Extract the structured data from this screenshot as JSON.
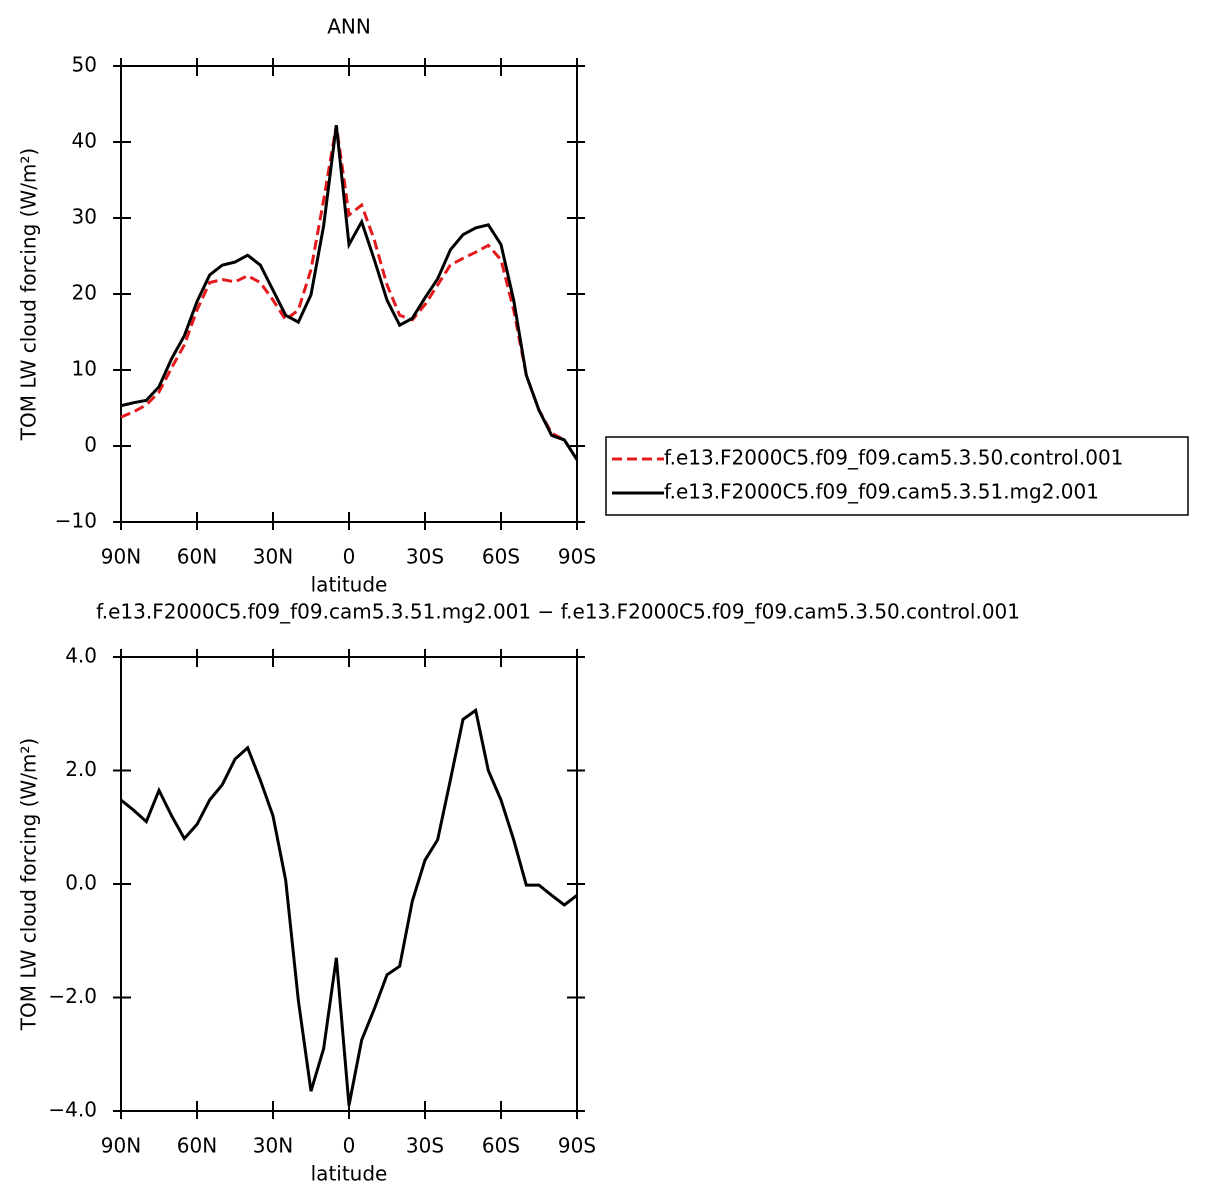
{
  "chart_data": [
    {
      "type": "line",
      "title": "ANN",
      "xlabel": "latitude",
      "ylabel": "TOM LW cloud forcing (W/m²)",
      "x": [
        90,
        85,
        80,
        75,
        70,
        65,
        60,
        55,
        50,
        45,
        40,
        35,
        30,
        25,
        20,
        15,
        10,
        5,
        0,
        -5,
        -10,
        -15,
        -20,
        -25,
        -30,
        -35,
        -40,
        -45,
        -50,
        -55,
        -60,
        -65,
        -70,
        -75,
        -80,
        -85,
        -90
      ],
      "xlim": [
        90,
        -90
      ],
      "xticks": [
        {
          "value": 90,
          "label": "90N"
        },
        {
          "value": 60,
          "label": "60N"
        },
        {
          "value": 30,
          "label": "30N"
        },
        0,
        {
          "value": -30,
          "label": "30S"
        },
        {
          "value": -60,
          "label": "60S"
        },
        {
          "value": -90,
          "label": "90S"
        }
      ],
      "ylim": [
        -10,
        50
      ],
      "yticks": [
        {
          "value": -10,
          "label": "−10"
        },
        0,
        10,
        20,
        30,
        40,
        50
      ],
      "legend": "right",
      "series": [
        {
          "name": "f.e13.F2000C5.f09_f09.cam5.3.50.control.001",
          "color": "#e41a1c",
          "line_style": "dashed",
          "values": [
            3.8,
            4.5,
            5.4,
            7.1,
            10.3,
            13.3,
            17.9,
            21.5,
            21.9,
            21.6,
            22.4,
            21.5,
            19.2,
            16.6,
            17.9,
            23.2,
            32.4,
            42.2,
            30.4,
            31.7,
            27.1,
            21.2,
            17.2,
            16.6,
            18.6,
            21.2,
            23.8,
            24.7,
            25.5,
            26.4,
            24.5,
            17.9,
            9.3,
            4.7,
            1.7,
            0.8,
            -1.8
          ]
        },
        {
          "name": "f.e13.F2000C5.f09_f09.cam5.3.51.mg2.001",
          "color": "#000000",
          "line_style": "solid",
          "values": [
            5.3,
            5.7,
            6.0,
            7.8,
            11.5,
            14.5,
            19.0,
            22.5,
            23.8,
            24.2,
            25.1,
            23.8,
            20.5,
            17.2,
            16.3,
            19.9,
            29.0,
            42.2,
            26.5,
            29.5,
            24.5,
            19.2,
            15.9,
            16.8,
            19.5,
            22.0,
            25.8,
            27.8,
            28.7,
            29.1,
            26.5,
            19.2,
            9.3,
            4.7,
            1.4,
            0.8,
            -1.8
          ]
        }
      ]
    },
    {
      "type": "line",
      "title": "f.e13.F2000C5.f09_f09.cam5.3.51.mg2.001 − f.e13.F2000C5.f09_f09.cam5.3.50.control.001",
      "xlabel": "latitude",
      "ylabel": "TOM LW cloud forcing (W/m²)",
      "x": [
        90,
        85,
        80,
        75,
        70,
        65,
        60,
        55,
        50,
        45,
        40,
        35,
        30,
        25,
        20,
        15,
        10,
        5,
        0,
        -5,
        -10,
        -15,
        -20,
        -25,
        -30,
        -35,
        -40,
        -45,
        -50,
        -55,
        -60,
        -65,
        -70,
        -75,
        -80,
        -85,
        -90
      ],
      "xlim": [
        90,
        -90
      ],
      "xticks": [
        {
          "value": 90,
          "label": "90N"
        },
        {
          "value": 60,
          "label": "60N"
        },
        {
          "value": 30,
          "label": "30N"
        },
        0,
        {
          "value": -30,
          "label": "30S"
        },
        {
          "value": -60,
          "label": "60S"
        },
        {
          "value": -90,
          "label": "90S"
        }
      ],
      "ylim": [
        -4,
        4
      ],
      "yticks": [
        {
          "value": -4,
          "label": "−4.0"
        },
        {
          "value": -2,
          "label": "−2.0"
        },
        {
          "value": 0,
          "label": "0.0"
        },
        {
          "value": 2,
          "label": "2.0"
        },
        {
          "value": 4,
          "label": "4.0"
        }
      ],
      "series": [
        {
          "color": "#000000",
          "line_style": "solid",
          "values": [
            1.48,
            1.3,
            1.1,
            1.65,
            1.2,
            0.8,
            1.05,
            1.48,
            1.75,
            2.2,
            2.4,
            1.83,
            1.2,
            0.07,
            -2.05,
            -3.65,
            -2.9,
            -1.3,
            -3.9,
            -2.75,
            -2.2,
            -1.6,
            -1.45,
            -0.3,
            0.42,
            0.78,
            1.83,
            2.9,
            3.06,
            2.0,
            1.48,
            0.78,
            -0.02,
            -0.02,
            -0.2,
            -0.37,
            -0.2
          ]
        }
      ]
    }
  ]
}
